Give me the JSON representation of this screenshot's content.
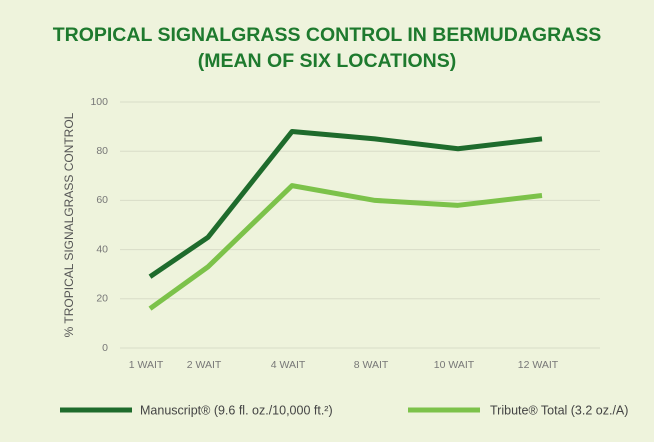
{
  "chart_data": {
    "type": "line",
    "title": "TROPICAL SIGNALGRASS CONTROL IN BERMUDAGRASS",
    "subtitle": "(MEAN OF SIX LOCATIONS)",
    "y_label": "% TROPICAL SIGNALGRASS CONTROL",
    "categories": [
      "1 WAIT",
      "2 WAIT",
      "4 WAIT",
      "8 WAIT",
      "10 WAIT",
      "12 WAIT"
    ],
    "series": [
      {
        "name": "Manuscript® (9.6 fl. oz./10,000 ft.²)",
        "color": "#1e6b2c",
        "values": [
          29,
          45,
          88,
          85,
          81,
          85
        ]
      },
      {
        "name": "Tribute® Total (3.2 oz./A)",
        "color": "#7cc24a",
        "values": [
          16,
          33,
          66,
          60,
          58,
          62
        ]
      }
    ],
    "ylim": [
      0,
      100
    ],
    "yticks": [
      0,
      20,
      40,
      60,
      80,
      100
    ],
    "grid": true,
    "legend": "bottom"
  }
}
